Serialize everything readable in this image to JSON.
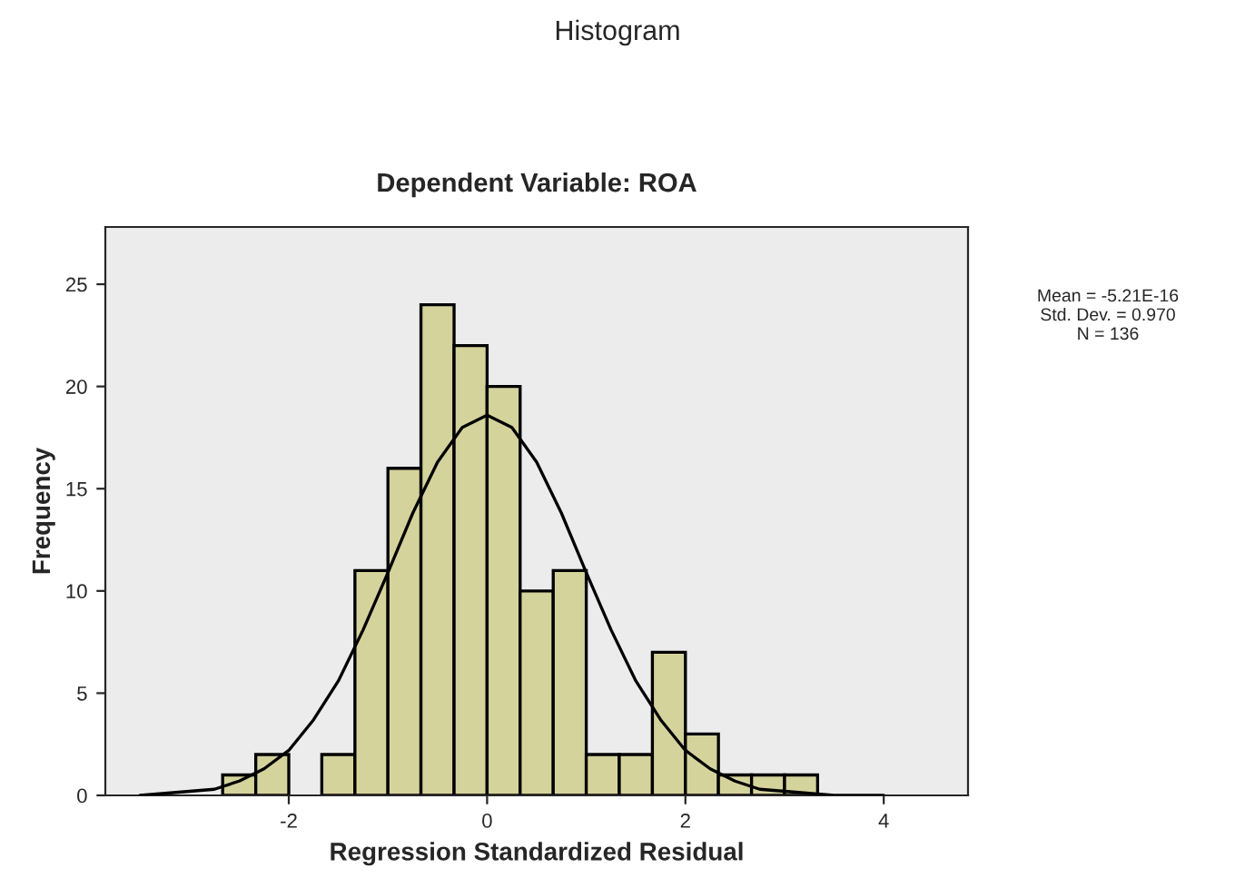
{
  "chart_data": {
    "type": "histogram",
    "title": "Histogram",
    "subtitle": "Dependent Variable: ROA",
    "xlabel": "Regression Standardized Residual",
    "ylabel": "Frequency",
    "bins": [
      -2.667,
      -2.333,
      -2,
      -1.667,
      -1.333,
      -1,
      -0.667,
      -0.333,
      0,
      0.333,
      0.667,
      1,
      1.333,
      1.667,
      2,
      2.333,
      2.667,
      3,
      3.333
    ],
    "values": [
      1,
      2,
      0,
      2,
      11,
      16,
      24,
      22,
      20,
      10,
      11,
      2,
      2,
      7,
      3,
      1,
      1,
      1
    ],
    "color": "#d5d39c",
    "series": [
      {
        "type": "line",
        "color": "#000000",
        "x": [
          -3.5,
          -3.25,
          -3,
          -2.75,
          -2.5,
          -2.25,
          -2,
          -1.75,
          -1.5,
          -1.25,
          -1,
          -0.75,
          -0.5,
          -0.25,
          0,
          0.25,
          0.5,
          0.75,
          1,
          1.25,
          1.5,
          1.75,
          2,
          2.25,
          2.5,
          2.75,
          3,
          3.25,
          3.5,
          3.75,
          4
        ],
        "values": [
          0,
          0.1,
          0.2,
          0.3,
          0.7,
          1.3,
          2.2,
          3.7,
          5.6,
          8.1,
          10.9,
          13.8,
          16.3,
          18,
          18.6,
          18,
          16.3,
          13.8,
          10.9,
          8.1,
          5.6,
          3.7,
          2.2,
          1.3,
          0.7,
          0.3,
          0.2,
          0.1,
          0,
          0,
          0
        ]
      }
    ],
    "xlim": [
      -3.85,
      4.85
    ],
    "ylim": [
      0,
      27.8
    ],
    "xticks": [
      -2,
      0,
      2,
      4
    ],
    "yticks": [
      0,
      5,
      10,
      15,
      20,
      25
    ],
    "grid": false,
    "legend": false,
    "annotations": [
      "Mean = -5.21E-16",
      "Std. Dev. = 0.970",
      "N = 136"
    ]
  }
}
